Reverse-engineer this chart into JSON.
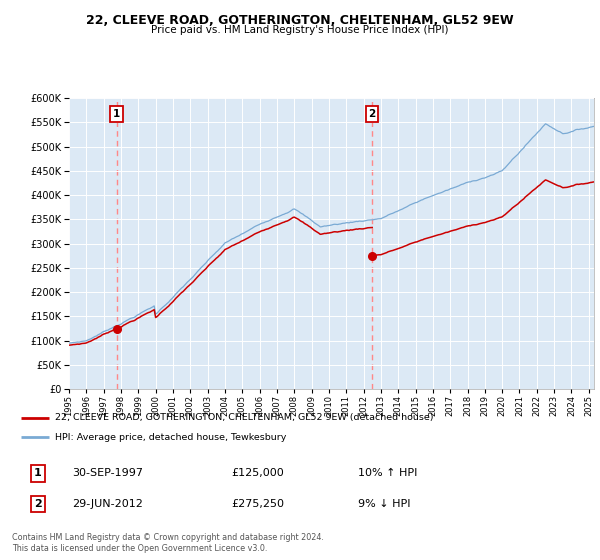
{
  "title": "22, CLEEVE ROAD, GOTHERINGTON, CHELTENHAM, GL52 9EW",
  "subtitle": "Price paid vs. HM Land Registry's House Price Index (HPI)",
  "legend_line1": "22, CLEEVE ROAD, GOTHERINGTON, CHELTENHAM, GL52 9EW (detached house)",
  "legend_line2": "HPI: Average price, detached house, Tewkesbury",
  "transaction1_date": "30-SEP-1997",
  "transaction1_price": 125000,
  "transaction1_hpi": "10% ↑ HPI",
  "transaction2_date": "29-JUN-2012",
  "transaction2_price": 275250,
  "transaction2_hpi": "9% ↓ HPI",
  "footer": "Contains HM Land Registry data © Crown copyright and database right 2024.\nThis data is licensed under the Open Government Licence v3.0.",
  "ylim": [
    0,
    600000
  ],
  "yticks": [
    0,
    50000,
    100000,
    150000,
    200000,
    250000,
    300000,
    350000,
    400000,
    450000,
    500000,
    550000,
    600000
  ],
  "hpi_color": "#7aaad4",
  "price_color": "#cc0000",
  "dashed_line_color": "#ff8888",
  "marker_color": "#cc0000",
  "transaction1_year": 1997.75,
  "transaction2_year": 2012.5,
  "plot_bg": "#dce9f5",
  "fig_bg": "#ffffff"
}
